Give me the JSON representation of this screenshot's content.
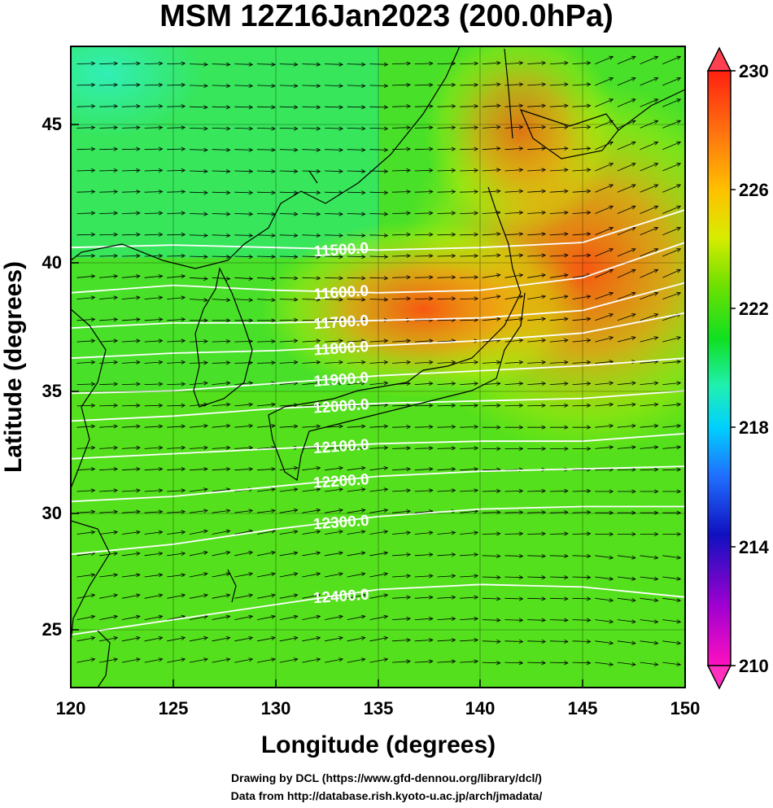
{
  "title": "MSM 12Z16Jan2023 (200.0hPa)",
  "axes": {
    "xlabel": "Longitude (degrees)",
    "ylabel": "Latitude  (degrees)",
    "xticks": [
      "120",
      "125",
      "130",
      "135",
      "140",
      "145",
      "150"
    ],
    "yticks": [
      "25",
      "30",
      "35",
      "40",
      "45"
    ]
  },
  "colorbar": {
    "ticks": [
      "210",
      "214",
      "218",
      "222",
      "226",
      "230"
    ],
    "range": [
      210,
      230
    ]
  },
  "chart_data": {
    "type": "heatmap",
    "title": "MSM 12Z16Jan2023 (200.0hPa)",
    "xlabel": "Longitude (degrees)",
    "ylabel": "Latitude  (degrees)",
    "xlim": [
      120,
      150
    ],
    "ylim": [
      22.5,
      48
    ],
    "value_range": [
      210,
      230
    ],
    "contours": [
      {
        "label": "11500.0",
        "value": 11500,
        "points": [
          [
            120,
            40.0
          ],
          [
            125,
            40.1
          ],
          [
            130,
            40.0
          ],
          [
            135,
            39.9
          ],
          [
            140,
            40.0
          ],
          [
            145,
            40.2
          ],
          [
            150,
            41.5
          ]
        ]
      },
      {
        "label": "11600.0",
        "value": 11600,
        "points": [
          [
            120,
            38.2
          ],
          [
            125,
            38.5
          ],
          [
            130,
            38.3
          ],
          [
            135,
            38.2
          ],
          [
            140,
            38.3
          ],
          [
            145,
            38.8
          ],
          [
            150,
            40.2
          ]
        ]
      },
      {
        "label": "11700.0",
        "value": 11700,
        "points": [
          [
            120,
            36.8
          ],
          [
            125,
            37.0
          ],
          [
            130,
            37.0
          ],
          [
            135,
            37.1
          ],
          [
            140,
            37.2
          ],
          [
            145,
            37.5
          ],
          [
            150,
            38.6
          ]
        ]
      },
      {
        "label": "11800.0",
        "value": 11800,
        "points": [
          [
            120,
            35.6
          ],
          [
            125,
            35.8
          ],
          [
            130,
            35.9
          ],
          [
            135,
            36.1
          ],
          [
            140,
            36.3
          ],
          [
            145,
            36.6
          ],
          [
            150,
            37.4
          ]
        ]
      },
      {
        "label": "11900.0",
        "value": 11900,
        "points": [
          [
            120,
            34.2
          ],
          [
            125,
            34.3
          ],
          [
            130,
            34.6
          ],
          [
            135,
            34.9
          ],
          [
            140,
            35.1
          ],
          [
            145,
            35.3
          ],
          [
            150,
            35.6
          ]
        ]
      },
      {
        "label": "12000.0",
        "value": 12000,
        "points": [
          [
            120,
            33.1
          ],
          [
            125,
            33.3
          ],
          [
            130,
            33.6
          ],
          [
            135,
            33.8
          ],
          [
            140,
            33.9
          ],
          [
            145,
            34.0
          ],
          [
            150,
            34.3
          ]
        ]
      },
      {
        "label": "12100.0",
        "value": 12100,
        "points": [
          [
            120,
            31.6
          ],
          [
            125,
            31.8
          ],
          [
            130,
            32.0
          ],
          [
            135,
            32.2
          ],
          [
            140,
            32.3
          ],
          [
            145,
            32.3
          ],
          [
            150,
            32.6
          ]
        ]
      },
      {
        "label": "12200.0",
        "value": 12200,
        "points": [
          [
            120,
            29.9
          ],
          [
            125,
            30.1
          ],
          [
            130,
            30.5
          ],
          [
            135,
            30.9
          ],
          [
            140,
            31.1
          ],
          [
            145,
            31.2
          ],
          [
            150,
            31.3
          ]
        ]
      },
      {
        "label": "12300.0",
        "value": 12300,
        "points": [
          [
            120,
            27.8
          ],
          [
            125,
            28.2
          ],
          [
            130,
            28.8
          ],
          [
            135,
            29.3
          ],
          [
            140,
            29.6
          ],
          [
            145,
            29.7
          ],
          [
            150,
            29.7
          ]
        ]
      },
      {
        "label": "12400.0",
        "value": 12400,
        "points": [
          [
            120,
            24.6
          ],
          [
            125,
            25.2
          ],
          [
            130,
            25.8
          ],
          [
            135,
            26.4
          ],
          [
            140,
            26.6
          ],
          [
            145,
            26.5
          ],
          [
            150,
            26.1
          ]
        ]
      }
    ],
    "warm_centers": [
      {
        "lon": 144.5,
        "lat": 40.5,
        "value": 228.5
      },
      {
        "lon": 138.0,
        "lat": 38.5,
        "value": 227.5
      }
    ]
  },
  "credits": {
    "line1": "Drawing by DCL (https://www.gfd-dennou.org/library/dcl/)",
    "line2": "Data from http://database.rish.kyoto-u.ac.jp/arch/jmadata/"
  },
  "colors": {
    "warm": "#ff5a10",
    "mid": "#c8f000",
    "neutral": "#22e020",
    "cool": "#00d8f0",
    "cold": "#1020d0",
    "coldest": "#ff10c0"
  }
}
